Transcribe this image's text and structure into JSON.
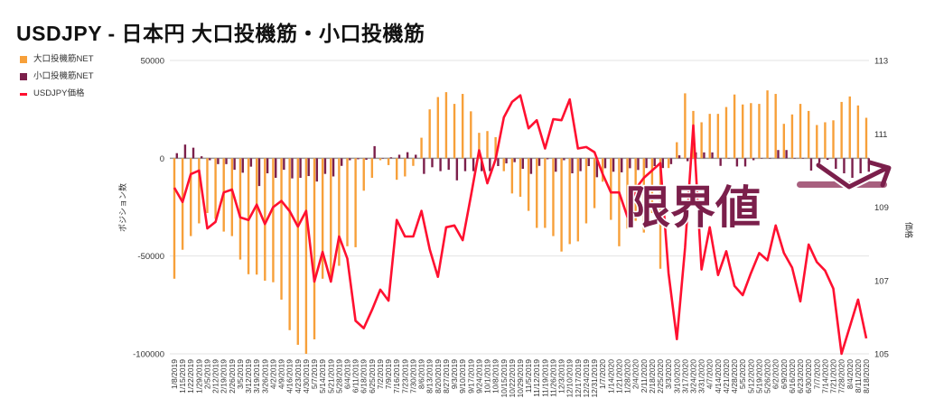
{
  "title": "USDJPY - 日本円 大口投機筋・小口投機筋",
  "legend": [
    {
      "label": "大口投機筋NET",
      "color": "#f7a03a"
    },
    {
      "label": "小口投機筋NET",
      "color": "#7b1f4b"
    },
    {
      "label": "USDJPY価格",
      "color": "#ff1030"
    }
  ],
  "annotation": {
    "text": "限界値",
    "color": "#7b1f4b"
  },
  "chart_data": {
    "type": "bar+line",
    "title": "USDJPY - 日本円 大口投機筋・小口投機筋",
    "ylabel_left": "ポジション数",
    "ylabel_right": "価格",
    "ylim_left": [
      -100000,
      50000
    ],
    "ylim_right": [
      105,
      113
    ],
    "left_ticks": [
      "50000",
      "0",
      "-50000",
      "-100000"
    ],
    "right_ticks": [
      "113",
      "111",
      "109",
      "107",
      "105"
    ],
    "left_tick_values": [
      50000,
      0,
      -50000,
      -100000
    ],
    "right_tick_values": [
      113,
      111,
      109,
      107,
      105
    ],
    "categories": [
      "1/8/2019",
      "1/15/2019",
      "1/22/2019",
      "1/29/2019",
      "2/5/2019",
      "2/12/2019",
      "2/19/2019",
      "2/26/2019",
      "3/5/2019",
      "3/12/2019",
      "3/19/2019",
      "3/26/2019",
      "4/2/2019",
      "4/9/2019",
      "4/16/2019",
      "4/23/2019",
      "4/30/2019",
      "5/7/2019",
      "5/14/2019",
      "5/21/2019",
      "5/28/2019",
      "6/4/2019",
      "6/11/2019",
      "6/18/2019",
      "6/25/2019",
      "7/2/2019",
      "7/9/2019",
      "7/16/2019",
      "7/23/2019",
      "7/30/2019",
      "8/6/2019",
      "8/13/2019",
      "8/20/2019",
      "8/27/2019",
      "9/3/2019",
      "9/10/2019",
      "9/17/2019",
      "9/24/2019",
      "10/1/2019",
      "10/8/2019",
      "10/15/2019",
      "10/22/2019",
      "10/29/2019",
      "11/5/2019",
      "11/12/2019",
      "11/19/2019",
      "11/26/2019",
      "12/3/2019",
      "12/10/2019",
      "12/17/2019",
      "12/24/2019",
      "12/31/2019",
      "1/7/2020",
      "1/14/2020",
      "1/21/2020",
      "1/28/2020",
      "2/4/2020",
      "2/11/2020",
      "2/18/2020",
      "2/25/2020",
      "3/3/2020",
      "3/10/2020",
      "3/17/2020",
      "3/24/2020",
      "3/31/2020",
      "4/7/2020",
      "4/14/2020",
      "4/21/2020",
      "4/28/2020",
      "5/5/2020",
      "5/12/2020",
      "5/19/2020",
      "5/26/2020",
      "6/2/2020",
      "6/9/2020",
      "6/16/2020",
      "6/23/2020",
      "6/30/2020",
      "7/7/2020",
      "7/14/2020",
      "7/21/2020",
      "7/28/2020",
      "8/4/2020",
      "8/11/2020",
      "8/18/2020"
    ],
    "series": [
      {
        "name": "大口投機筋NET",
        "type": "bar",
        "axis": "left",
        "color": "#f7a03a",
        "values": [
          -61600,
          -46800,
          -39800,
          -33300,
          -28000,
          -31000,
          -37500,
          -39800,
          -51800,
          -59300,
          -59500,
          -62600,
          -63400,
          -72300,
          -87900,
          -95400,
          -100000,
          -92600,
          -61600,
          -61000,
          -55000,
          -45000,
          -45500,
          -16600,
          -10000,
          -1000,
          -3500,
          -11000,
          -9300,
          -3900,
          10500,
          25000,
          31300,
          33800,
          27800,
          32900,
          24000,
          13000,
          13900,
          10800,
          -6600,
          -18000,
          -19700,
          -26900,
          -35600,
          -35600,
          -39800,
          -47700,
          -43900,
          -42500,
          -33300,
          -25500,
          -12000,
          -31500,
          -45000,
          -36000,
          -32000,
          -38000,
          -28000,
          -56500,
          -5000,
          8200,
          33200,
          24200,
          18400,
          22700,
          22700,
          26200,
          32600,
          27500,
          28200,
          27800,
          34700,
          32900,
          17600,
          22400,
          27800,
          24200,
          17000,
          18400,
          19400,
          28800,
          31600,
          27000,
          20700
        ]
      },
      {
        "name": "小口投機筋NET",
        "type": "bar",
        "axis": "left",
        "color": "#7b1f4b",
        "values": [
          2600,
          7000,
          5400,
          1000,
          -1000,
          -3000,
          -3000,
          -5900,
          -7400,
          -4300,
          -14200,
          -7700,
          -10000,
          -5900,
          -10300,
          -10000,
          -9100,
          -11900,
          -8000,
          -9300,
          -3900,
          -1000,
          -500,
          -800,
          6200,
          0,
          500,
          1800,
          3100,
          1800,
          -8000,
          -4600,
          -6600,
          -5900,
          -11300,
          -6600,
          -6600,
          -6600,
          -6600,
          -4000,
          -2600,
          -2000,
          -5400,
          -8000,
          -3900,
          -500,
          -6900,
          -1000,
          -7700,
          -6600,
          -4000,
          -9700,
          -5100,
          -6900,
          -7200,
          -5100,
          -6000,
          -5000,
          -4000,
          -5000,
          -3000,
          1500,
          -1500,
          3000,
          3000,
          3000,
          -3900,
          0,
          -4200,
          -4200,
          -1000,
          0,
          0,
          4200,
          4200,
          0,
          0,
          -6300,
          -4200,
          -800,
          -5400,
          -7700,
          -10000,
          -7700,
          -6900
        ]
      },
      {
        "name": "USDJPY価格",
        "type": "line",
        "axis": "right",
        "color": "#ff1030",
        "values": [
          109.53,
          109.14,
          109.9,
          110.0,
          108.42,
          108.6,
          109.4,
          109.48,
          108.72,
          108.65,
          109.07,
          108.54,
          109.0,
          109.17,
          108.89,
          108.47,
          108.9,
          106.97,
          107.78,
          106.97,
          108.2,
          107.6,
          105.9,
          105.7,
          106.2,
          106.75,
          106.45,
          108.65,
          108.2,
          108.2,
          108.9,
          107.85,
          107.1,
          108.45,
          108.5,
          108.1,
          109.3,
          110.55,
          109.65,
          110.3,
          111.45,
          111.87,
          112.05,
          111.15,
          111.37,
          110.6,
          111.4,
          111.37,
          111.94,
          110.6,
          110.64,
          110.5,
          109.9,
          109.4,
          109.4,
          108.74,
          109.5,
          109.8,
          110.0,
          110.2,
          107.2,
          105.4,
          107.9,
          111.23,
          107.3,
          108.45,
          107.15,
          107.8,
          106.85,
          106.6,
          107.2,
          107.75,
          107.55,
          108.5,
          107.75,
          107.35,
          106.43,
          107.98,
          107.5,
          107.27,
          106.78,
          105.0,
          105.74,
          106.48,
          105.42
        ]
      }
    ],
    "legend_position": "top-left",
    "grid": true
  }
}
